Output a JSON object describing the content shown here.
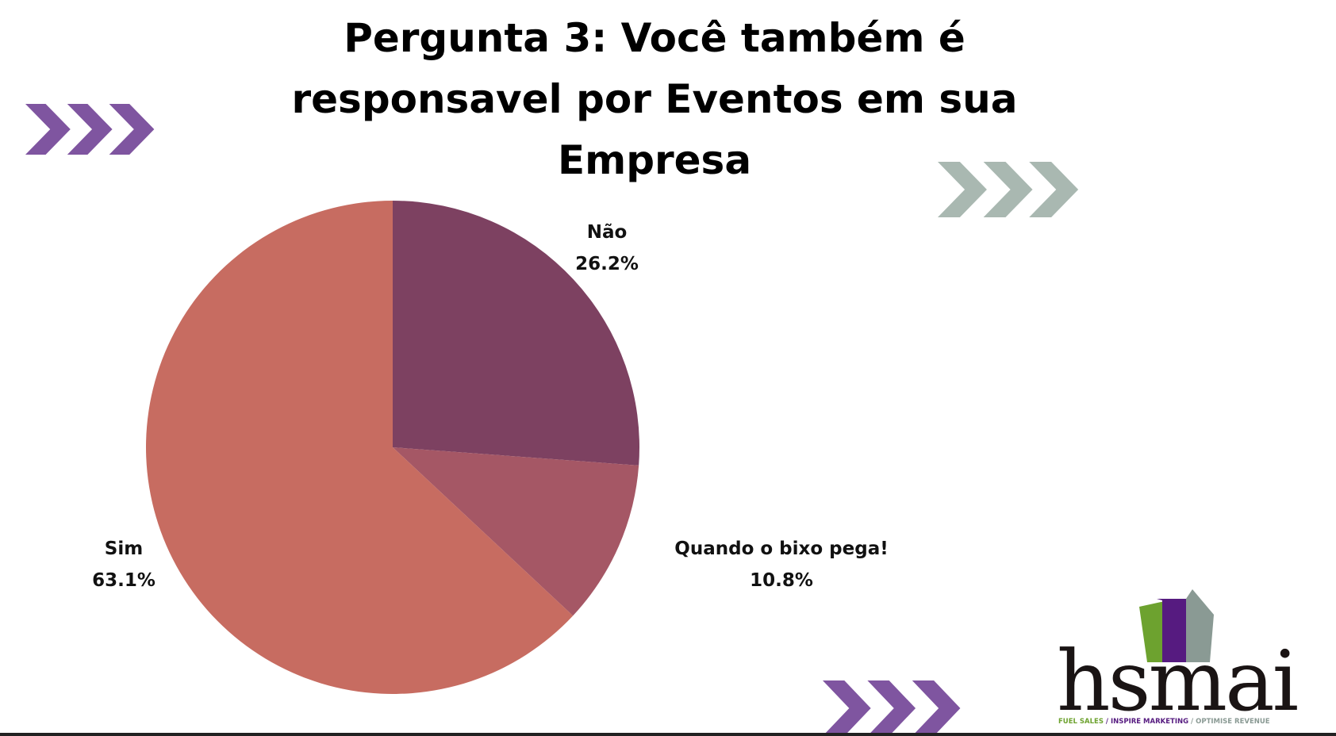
{
  "chart_data": {
    "type": "pie",
    "title": "Pergunta 3: Você também é responsavel por Eventos em sua Empresa",
    "title_lines": [
      "Pergunta 3: Você também é",
      "responsavel por Eventos em sua",
      "Empresa"
    ],
    "slices": [
      {
        "label": "Não",
        "value": 26.2,
        "display": "26.2%",
        "color": "#7d4161"
      },
      {
        "label": "Quando o bixo pega!",
        "value": 10.8,
        "display": "10.8%",
        "color": "#a55765"
      },
      {
        "label": "Sim",
        "value": 63.1,
        "display": "63.1%",
        "color": "#c76c61"
      }
    ],
    "start": "top",
    "direction": "clockwise",
    "legend": "none"
  },
  "decor": {
    "chevron_purple": "#7f55a0",
    "chevron_gray": "#a9b8b1"
  },
  "logo": {
    "name": "hsmai",
    "tagline": [
      "FUEL SALES",
      "INSPIRE MARKETING",
      "OPTIMISE REVENUE"
    ],
    "colors": {
      "green": "#6da22f",
      "purple": "#561b80",
      "gray": "#8a9a94",
      "text": "#1a1414"
    }
  }
}
